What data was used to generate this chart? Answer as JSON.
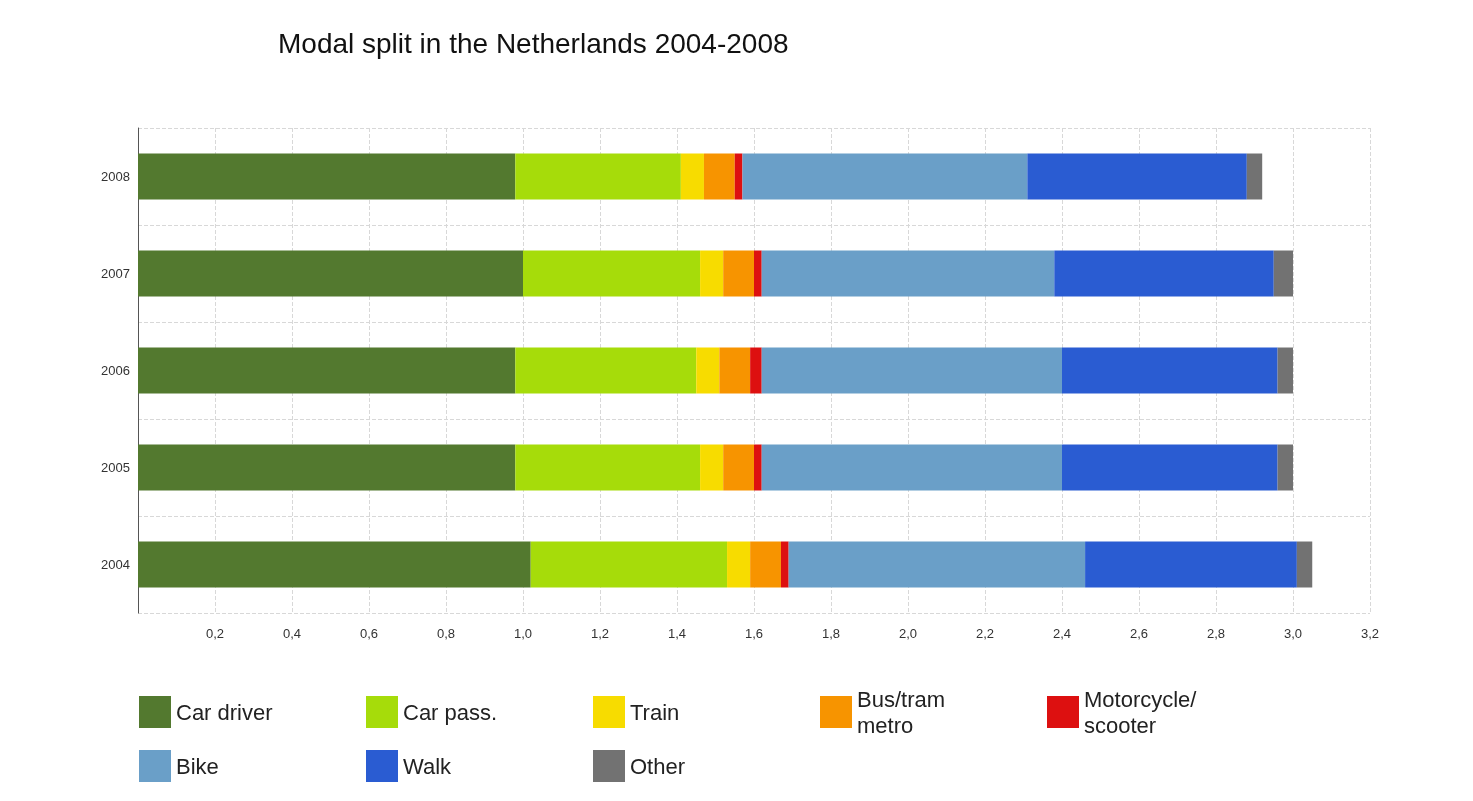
{
  "chart_data": {
    "type": "bar",
    "orientation": "horizontal",
    "stacked": true,
    "title": "Modal split in the Netherlands 2004-2008",
    "categories": [
      "2008",
      "2007",
      "2006",
      "2005",
      "2004"
    ],
    "series": [
      {
        "name": "Car driver",
        "color": "#53792f",
        "values": [
          0.98,
          1.0,
          0.98,
          0.98,
          1.02
        ]
      },
      {
        "name": "Car pass.",
        "color": "#a6dc0a",
        "values": [
          0.43,
          0.46,
          0.47,
          0.48,
          0.51
        ]
      },
      {
        "name": "Train",
        "color": "#f7dc00",
        "values": [
          0.06,
          0.06,
          0.06,
          0.06,
          0.06
        ]
      },
      {
        "name": "Bus/tram\nmetro",
        "color": "#f79400",
        "values": [
          0.08,
          0.08,
          0.08,
          0.08,
          0.08
        ]
      },
      {
        "name": "Motorcycle/\nscooter",
        "color": "#dd1010",
        "values": [
          0.02,
          0.02,
          0.03,
          0.02,
          0.02
        ]
      },
      {
        "name": "Bike",
        "color": "#6a9fc8",
        "values": [
          0.74,
          0.76,
          0.78,
          0.78,
          0.77
        ]
      },
      {
        "name": "Walk",
        "color": "#2a5cd2",
        "values": [
          0.57,
          0.57,
          0.56,
          0.56,
          0.55
        ]
      },
      {
        "name": "Other",
        "color": "#727272",
        "values": [
          0.04,
          0.05,
          0.04,
          0.04,
          0.04
        ]
      }
    ],
    "xlim": [
      0,
      3.2
    ],
    "xticks": [
      {
        "value": 0.2,
        "label": "0,2"
      },
      {
        "value": 0.4,
        "label": "0,4"
      },
      {
        "value": 0.6,
        "label": "0,6"
      },
      {
        "value": 0.8,
        "label": "0,8"
      },
      {
        "value": 1.0,
        "label": "1,0"
      },
      {
        "value": 1.2,
        "label": "1,2"
      },
      {
        "value": 1.4,
        "label": "1,4"
      },
      {
        "value": 1.6,
        "label": "1,6"
      },
      {
        "value": 1.8,
        "label": "1,8"
      },
      {
        "value": 2.0,
        "label": "2,0"
      },
      {
        "value": 2.2,
        "label": "2,2"
      },
      {
        "value": 2.4,
        "label": "2,4"
      },
      {
        "value": 2.6,
        "label": "2,6"
      },
      {
        "value": 2.8,
        "label": "2,8"
      },
      {
        "value": 3.0,
        "label": "3,0"
      },
      {
        "value": 3.2,
        "label": "3,2"
      }
    ],
    "grid": true,
    "legend": "bottom"
  }
}
